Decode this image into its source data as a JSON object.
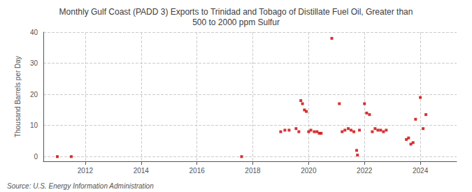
{
  "chart_data": {
    "type": "scatter",
    "title": "Monthly Gulf Coast (PADD 3) Exports to Trinidad and Tobago of Distillate Fuel Oil, Greater than\n500 to 2000 ppm Sulfur",
    "ylabel": "Thousand Barrels per Day",
    "annotations": [
      "Source: U.S. Energy Information Administration"
    ],
    "color": "#cc0000",
    "marker": "square",
    "grid": true,
    "xlim": [
      2010.5,
      2025.3
    ],
    "ylim": [
      -1.5,
      40
    ],
    "xticks": [
      2012,
      2014,
      2016,
      2018,
      2020,
      2022,
      2024
    ],
    "yticks": [
      0,
      10,
      20,
      30,
      40
    ],
    "x": [
      2011.0,
      2011.5,
      2017.6,
      2021.75,
      2019.0,
      2019.15,
      2019.3,
      2019.55,
      2019.65,
      2019.72,
      2019.78,
      2019.85,
      2019.92,
      2020.0,
      2020.08,
      2020.2,
      2020.3,
      2020.38,
      2020.45,
      2020.83,
      2021.1,
      2021.2,
      2021.3,
      2021.42,
      2021.52,
      2021.62,
      2021.72,
      2021.82,
      2022.0,
      2022.08,
      2022.18,
      2022.28,
      2022.38,
      2022.48,
      2022.58,
      2022.68,
      2022.78,
      2023.5,
      2023.58,
      2023.66,
      2023.74,
      2023.83,
      2024.0,
      2024.1,
      2024.2
    ],
    "values": [
      0.0,
      0.0,
      0.0,
      0.5,
      8.0,
      8.5,
      8.5,
      9.0,
      8.0,
      18.0,
      17.0,
      15.0,
      14.5,
      8.0,
      8.5,
      8.0,
      8.0,
      7.5,
      7.5,
      38.0,
      17.0,
      8.0,
      8.5,
      9.0,
      8.5,
      8.0,
      2.0,
      8.5,
      17.0,
      14.0,
      13.5,
      8.0,
      9.0,
      8.5,
      8.5,
      8.0,
      8.5,
      5.5,
      6.0,
      4.0,
      4.5,
      12.0,
      19.0,
      9.0,
      13.5
    ]
  }
}
